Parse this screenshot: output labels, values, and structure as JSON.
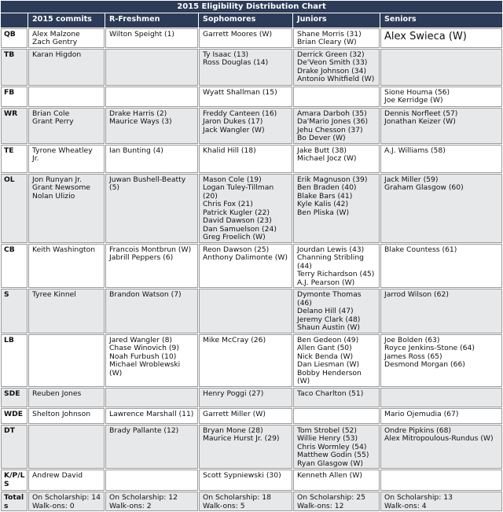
{
  "title": "2015 Eligibility Distribution Chart",
  "columns": [
    "2015 commits",
    "R-Freshmen",
    "Sophomores",
    "Juniors",
    "Seniors"
  ],
  "rows": [
    {
      "label": "QB",
      "cells": [
        [
          "Alex Malzone",
          "Zach Gentry"
        ],
        [
          "Wilton Speight (1)"
        ],
        [
          "Garrett Moores (W)"
        ],
        [
          "Shane Morris (31)",
          "Brian Cleary (W)"
        ],
        [
          "Alex Swieca (W)"
        ]
      ]
    },
    {
      "label": "TB",
      "cells": [
        [
          "Karan Higdon"
        ],
        [],
        [
          "Ty Isaac (13)",
          "Ross Douglas (14)"
        ],
        [
          "Derrick Green (32)",
          "De'Veon Smith (33)",
          "Drake Johnson (34)",
          "Antonio Whitfield (W)"
        ],
        []
      ]
    },
    {
      "label": "FB",
      "cells": [
        [],
        [],
        [
          "Wyatt Shallman (15)"
        ],
        [],
        [
          "Sione Houma (56)",
          "Joe Kerridge (W)"
        ]
      ]
    },
    {
      "label": "WR",
      "cells": [
        [
          "Brian Cole",
          "Grant Perry"
        ],
        [
          "Drake Harris (2)",
          "Maurice Ways (3)"
        ],
        [
          "Freddy Canteen (16)",
          "Jaron Dukes (17)",
          "Jack Wangler (W)"
        ],
        [
          "Amara Darboh (35)",
          "Da'Mario Jones (36)",
          "Jehu Chesson (37)",
          "Bo Dever (W)"
        ],
        [
          "Dennis Norfleet (57)",
          "Jonathan Keizer (W)"
        ]
      ]
    },
    {
      "label": "TE",
      "cells": [
        [
          "Tyrone Wheatley Jr."
        ],
        [
          "Ian Bunting (4)"
        ],
        [
          "Khalid Hill (18)"
        ],
        [
          "Jake Butt (38)",
          "Michael Jocz (W)"
        ],
        [
          "A.J. Williams (58)"
        ]
      ]
    },
    {
      "label": "OL",
      "cells": [
        [
          "Jon Runyan Jr.",
          "Grant Newsome",
          "Nolan Ulizio"
        ],
        [
          "Juwan Bushell-Beatty (5)"
        ],
        [
          "Mason Cole (19)",
          "Logan Tuley-Tillman (20)",
          "Chris Fox (21)",
          "Patrick Kugler (22)",
          "David Dawson (23)",
          "Dan Samuelson (24)",
          "Greg Froelich (W)"
        ],
        [
          "Erik Magnuson (39)",
          "Ben Braden (40)",
          "Blake Bars (41)",
          "Kyle Kalis (42)",
          "Ben Pliska (W)"
        ],
        [
          "Jack Miller (59)",
          "Graham Glasgow (60)"
        ]
      ]
    },
    {
      "label": "CB",
      "cells": [
        [
          "Keith Washington"
        ],
        [
          "Francois Montbrun (W)",
          "Jabrill Peppers (6)"
        ],
        [
          "Reon Dawson (25)",
          "Anthony Dalimonte (W)"
        ],
        [
          "Jourdan Lewis (43)",
          "Channing Stribling (44)",
          "Terry Richardson (45)",
          "A.J. Pearson (W)"
        ],
        [
          "Blake Countess (61)"
        ]
      ]
    },
    {
      "label": "S",
      "cells": [
        [
          "Tyree Kinnel"
        ],
        [
          "Brandon Watson (7)"
        ],
        [],
        [
          "Dymonte Thomas (46)",
          "Delano Hill (47)",
          "Jeremy Clark (48)",
          "Shaun Austin (W)"
        ],
        [
          "Jarrod Wilson (62)"
        ]
      ]
    },
    {
      "label": "LB",
      "cells": [
        [],
        [
          "Jared Wangler (8)",
          "Chase Winovich (9)",
          "Noah Furbush (10)",
          "Michael Wroblewski (W)"
        ],
        [
          "Mike McCray (26)"
        ],
        [
          "Ben Gedeon (49)",
          "Allen Gant (50)",
          "Nick Benda (W)",
          "Dan Liesman (W)",
          "Bobby Henderson (W)"
        ],
        [
          "Joe Bolden (63)",
          "Royce Jenkins-Stone (64)",
          "James Ross (65)",
          "Desmond Morgan (66)"
        ]
      ]
    },
    {
      "label": "SDE",
      "cells": [
        [
          "Reuben Jones"
        ],
        [],
        [
          "Henry Poggi (27)"
        ],
        [
          "Taco Charlton (51)"
        ],
        []
      ]
    },
    {
      "label": "WDE",
      "cells": [
        [
          "Shelton Johnson"
        ],
        [
          "Lawrence Marshall (11)"
        ],
        [
          "Garrett Miller (W)"
        ],
        [],
        [
          "Mario Ojemudia (67)"
        ]
      ]
    },
    {
      "label": "DT",
      "cells": [
        [],
        [
          "Brady Pallante (12)"
        ],
        [
          "Bryan Mone (28)",
          "Maurice Hurst Jr. (29)"
        ],
        [
          "Tom Strobel (52)",
          "Willie Henry (53)",
          "Chris Wormley (54)",
          "Matthew Godin (55)",
          "Ryan Glasgow (W)"
        ],
        [
          "Ondre Pipkins (68)",
          "Alex Mitropoulous-Rundus (W)"
        ]
      ]
    },
    {
      "label": "K/P/LS",
      "cells": [
        [
          "Andrew David"
        ],
        [],
        [
          "Scott Sypniewski (30)"
        ],
        [
          "Kenneth Allen (W)"
        ],
        []
      ]
    },
    {
      "label": "Totals",
      "cells": [
        [
          "On Scholarship: 14",
          "Walk-ons: 0"
        ],
        [
          "On Scholarship: 12",
          "Walk-ons: 2"
        ],
        [
          "On Scholarship: 18",
          "Walk-ons: 5"
        ],
        [
          "On Scholarship: 25",
          "Walk-ons: 12"
        ],
        [
          "On Scholarship: 13",
          "Walk-ons: 4"
        ]
      ]
    }
  ]
}
